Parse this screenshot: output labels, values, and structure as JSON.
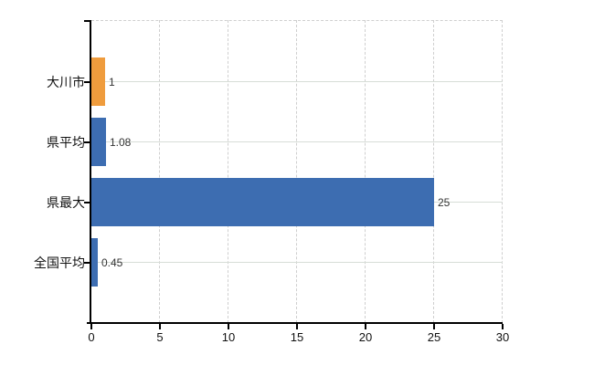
{
  "chart_data": {
    "type": "bar",
    "orientation": "horizontal",
    "title": "",
    "xlabel": "",
    "ylabel": "",
    "categories": [
      "大川市",
      "県平均",
      "県最大",
      "全国平均"
    ],
    "values": [
      1,
      1.08,
      25,
      0.45
    ],
    "value_labels": [
      "1",
      "1.08",
      "25",
      "0.45"
    ],
    "bar_colors": [
      "#EF9C3D",
      "#3D6DB1",
      "#3D6DB1",
      "#3D6DB1"
    ],
    "xlim": [
      0,
      30
    ],
    "xticks": [
      0,
      5,
      10,
      15,
      20,
      25,
      30
    ],
    "xtick_labels": [
      "0",
      "5",
      "10",
      "15",
      "20",
      "25",
      "30"
    ],
    "grid": true,
    "vertical_gridlines_dashed": true,
    "horizontal_gridlines_solid": true,
    "legend": false
  },
  "colors": {
    "bar_orange": "#EF9C3D",
    "bar_blue": "#3D6DB1",
    "vertical_gridline": "#CFCFCF",
    "horizontal_gridline": "#D7DDD7",
    "axis": "#000000",
    "category_text": "#111111",
    "tick_text": "#111111",
    "value_text": "#333333",
    "background": "#FFFFFF"
  }
}
